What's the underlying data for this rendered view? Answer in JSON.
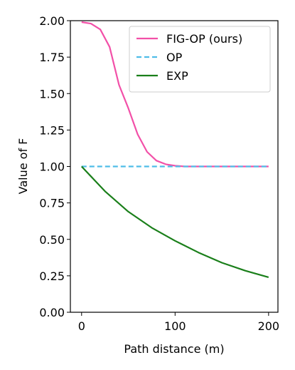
{
  "chart_data": {
    "type": "line",
    "title": "",
    "xlabel": "Path distance (m)",
    "ylabel": "Value of F",
    "xlim": [
      -12,
      210
    ],
    "ylim": [
      0.0,
      2.0
    ],
    "x_ticks": [
      0,
      100,
      200
    ],
    "x_tick_labels": [
      "0",
      "100",
      "200"
    ],
    "y_ticks": [
      0.0,
      0.25,
      0.5,
      0.75,
      1.0,
      1.25,
      1.5,
      1.75,
      2.0
    ],
    "y_tick_labels": [
      "0.00",
      "0.25",
      "0.50",
      "0.75",
      "1.00",
      "1.25",
      "1.50",
      "1.75",
      "2.00"
    ],
    "grid": false,
    "legend_position": "top-right",
    "series": [
      {
        "name": "FIG-OP (ours)",
        "color": "#f250a8",
        "style": "solid",
        "x": [
          0,
          10,
          20,
          30,
          40,
          50,
          60,
          70,
          80,
          90,
          100,
          110,
          120,
          140,
          160,
          180,
          200
        ],
        "y": [
          1.99,
          1.98,
          1.94,
          1.82,
          1.56,
          1.4,
          1.22,
          1.1,
          1.04,
          1.015,
          1.005,
          1.0,
          1.0,
          1.0,
          1.0,
          1.0,
          1.0
        ]
      },
      {
        "name": "OP",
        "color": "#4fbde8",
        "style": "dashed",
        "x": [
          0,
          200
        ],
        "y": [
          1.0,
          1.0
        ]
      },
      {
        "name": "EXP",
        "color": "#1a7f1a",
        "style": "solid",
        "x": [
          0,
          25,
          50,
          75,
          100,
          125,
          150,
          175,
          200
        ],
        "y": [
          1.0,
          0.83,
          0.69,
          0.58,
          0.49,
          0.41,
          0.34,
          0.285,
          0.24
        ]
      }
    ]
  }
}
